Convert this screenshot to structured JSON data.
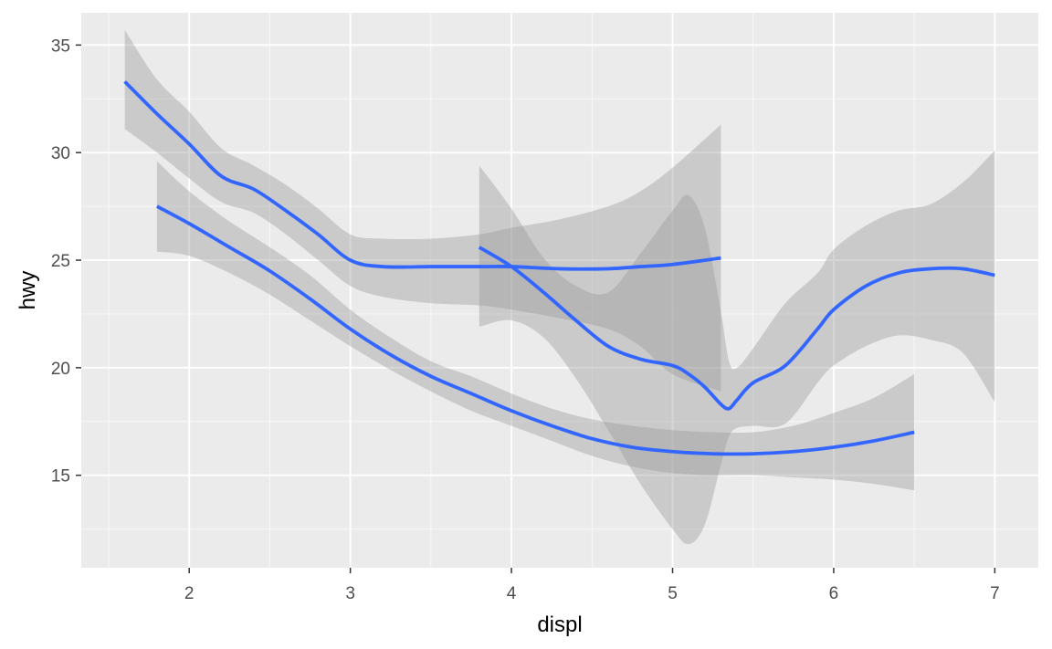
{
  "chart_data": {
    "type": "line",
    "title": "",
    "xlabel": "displ",
    "ylabel": "hwy",
    "xlim": [
      1.33,
      7.27
    ],
    "ylim": [
      10.7,
      36.5
    ],
    "x_ticks": [
      2,
      3,
      4,
      5,
      6,
      7
    ],
    "y_ticks": [
      15,
      20,
      25,
      30,
      35
    ],
    "grid": true,
    "legend": "none",
    "colors": {
      "panel": "#ebebeb",
      "grid": "#ffffff",
      "line": "#3366ff",
      "ribbon": "#999999"
    },
    "series": [
      {
        "x": [
          1.6,
          1.8,
          2.0,
          2.2,
          2.4,
          2.6,
          2.8,
          3.0,
          3.2,
          3.5,
          3.8,
          4.0,
          4.3,
          4.6,
          4.8,
          5.0,
          5.3
        ],
        "y": [
          33.3,
          31.8,
          30.4,
          28.9,
          28.3,
          27.3,
          26.2,
          25.0,
          24.7,
          24.7,
          24.7,
          24.7,
          24.6,
          24.6,
          24.7,
          24.8,
          25.1
        ],
        "lower": [
          31.1,
          30.0,
          28.8,
          27.7,
          27.2,
          26.2,
          25.0,
          23.8,
          23.3,
          23.0,
          22.9,
          22.7,
          22.3,
          21.8,
          21.0,
          19.7,
          18.9
        ],
        "upper": [
          35.7,
          33.4,
          31.9,
          30.2,
          29.4,
          28.5,
          27.4,
          26.2,
          26.0,
          26.0,
          26.2,
          26.5,
          26.9,
          27.5,
          28.2,
          29.3,
          31.3
        ]
      },
      {
        "x": [
          1.8,
          2.0,
          2.25,
          2.5,
          2.75,
          3.0,
          3.25,
          3.5,
          3.75,
          4.0,
          4.25,
          4.5,
          4.75,
          5.0,
          5.25,
          5.5,
          5.75,
          6.0,
          6.25,
          6.5
        ],
        "y": [
          27.5,
          26.7,
          25.6,
          24.5,
          23.2,
          21.8,
          20.6,
          19.6,
          18.8,
          18.0,
          17.3,
          16.7,
          16.3,
          16.1,
          16.0,
          16.0,
          16.1,
          16.3,
          16.6,
          17.0
        ],
        "lower": [
          25.4,
          25.2,
          24.4,
          23.4,
          22.2,
          21.0,
          19.9,
          18.9,
          18.0,
          17.3,
          16.6,
          15.9,
          15.4,
          15.1,
          15.0,
          15.0,
          14.9,
          14.8,
          14.6,
          14.3
        ],
        "upper": [
          29.6,
          28.2,
          26.8,
          25.6,
          24.3,
          22.7,
          21.4,
          20.3,
          19.6,
          18.8,
          18.1,
          17.6,
          17.3,
          17.1,
          17.0,
          17.0,
          17.3,
          17.9,
          18.6,
          19.7
        ]
      },
      {
        "x": [
          3.8,
          4.0,
          4.2,
          4.4,
          4.6,
          4.8,
          5.0,
          5.1,
          5.2,
          5.3,
          5.35,
          5.4,
          5.5,
          5.7,
          5.9,
          6.0,
          6.2,
          6.4,
          6.6,
          6.8,
          7.0
        ],
        "y": [
          25.6,
          24.7,
          23.5,
          22.2,
          21.0,
          20.4,
          20.1,
          19.7,
          19.1,
          18.3,
          18.1,
          18.5,
          19.3,
          20.1,
          21.8,
          22.7,
          23.8,
          24.4,
          24.6,
          24.6,
          24.3
        ],
        "lower": [
          21.9,
          22.2,
          21.4,
          19.5,
          17.1,
          14.6,
          12.5,
          11.8,
          12.7,
          15.5,
          16.8,
          17.2,
          17.3,
          17.4,
          19.3,
          20.1,
          21.0,
          21.5,
          21.3,
          20.7,
          18.4
        ],
        "upper": [
          29.4,
          27.4,
          25.1,
          23.8,
          23.5,
          25.3,
          27.3,
          28.0,
          26.5,
          22.6,
          20.3,
          20.0,
          20.9,
          23.0,
          24.4,
          25.5,
          26.6,
          27.3,
          27.6,
          28.6,
          30.1
        ]
      }
    ]
  }
}
